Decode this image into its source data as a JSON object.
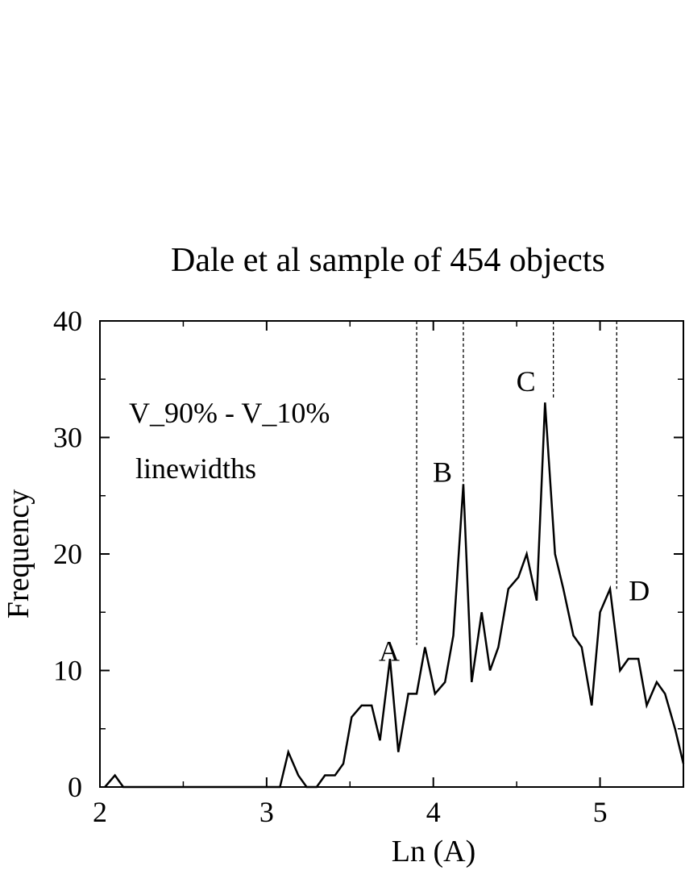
{
  "chart_data": {
    "type": "line",
    "title": "Dale et al sample of 454 objects",
    "x_label": "Ln (A)",
    "y_label": "Frequency",
    "annotations": [
      "V_90% - V_10%",
      "linewidths"
    ],
    "x": [
      2.03,
      2.09,
      2.14,
      3.08,
      3.13,
      3.19,
      3.24,
      3.3,
      3.35,
      3.41,
      3.46,
      3.51,
      3.57,
      3.63,
      3.68,
      3.74,
      3.79,
      3.85,
      3.9,
      3.95,
      4.01,
      4.07,
      4.12,
      4.18,
      4.23,
      4.29,
      4.34,
      4.39,
      4.45,
      4.51,
      4.56,
      4.62,
      4.67,
      4.73,
      4.78,
      4.84,
      4.89,
      4.95,
      5.0,
      5.06,
      5.12,
      5.17,
      5.23,
      5.28,
      5.34,
      5.39,
      5.45,
      5.5
    ],
    "series": [
      {
        "color": "#000000",
        "values": [
          0,
          1,
          0,
          0,
          3,
          1,
          0,
          0,
          1,
          1,
          2,
          6,
          7,
          7,
          4,
          11,
          3,
          8,
          8,
          12,
          8,
          9,
          13,
          26,
          9,
          15,
          10,
          12,
          17,
          18,
          20,
          16,
          33,
          20,
          17,
          13,
          12,
          7,
          15,
          17,
          10,
          11,
          11,
          7,
          9,
          8,
          5,
          2
        ]
      }
    ],
    "markers": [
      {
        "x": 3.9,
        "y": 12.2,
        "label": "A"
      },
      {
        "x": 4.18,
        "y": 26.2,
        "label": "B"
      },
      {
        "x": 4.72,
        "y": 33.3,
        "label": "C"
      },
      {
        "x": 5.1,
        "y": 17,
        "label": "D"
      }
    ],
    "xlim": [
      2,
      5.5
    ],
    "xticks": [
      2,
      3,
      4,
      5
    ],
    "xminorticks": [
      2.5,
      3.5,
      4.5
    ],
    "ylim": [
      0,
      40
    ],
    "yticks": [
      0,
      10,
      20,
      30,
      40
    ],
    "yminorticks": [
      5,
      15,
      25,
      35
    ],
    "grid": false
  }
}
